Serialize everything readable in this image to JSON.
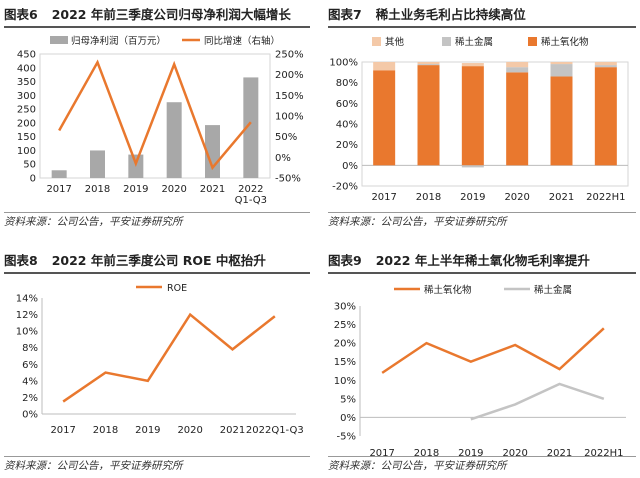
{
  "colors": {
    "orange": "#E9782E",
    "gray": "#A8A8A8",
    "peach": "#F4C9A8",
    "lightgray": "#C4C4C4"
  },
  "panels": [
    {
      "fig": "图表6",
      "title": "2022 年前三季度公司归母净利润大幅增长",
      "source": "资料来源：公司公告，平安证券研究所"
    },
    {
      "fig": "图表7",
      "title": "稀土业务毛利占比持续高位",
      "source": "资料来源：公司公告，平安证券研究所"
    },
    {
      "fig": "图表8",
      "title": "2022 年前三季度公司 ROE 中枢抬升",
      "source": "资料来源：公司公告，平安证券研究所"
    },
    {
      "fig": "图表9",
      "title": "2022 年上半年稀土氧化物毛利率提升",
      "source": "资料来源：公司公告，平安证券研究所"
    }
  ],
  "chart_data": [
    {
      "type": "bar",
      "title": "2022 年前三季度公司归母净利润大幅增长",
      "categories": [
        "2017",
        "2018",
        "2019",
        "2020",
        "2021",
        "2022\nQ1-Q3"
      ],
      "series": [
        {
          "name": "归母净利润（百万元）",
          "kind": "bar",
          "axis": "left",
          "values": [
            28,
            100,
            85,
            275,
            192,
            365
          ]
        },
        {
          "name": "同比增速（右轴）",
          "kind": "line",
          "axis": "right",
          "values": [
            65,
            230,
            -15,
            225,
            -25,
            85
          ]
        }
      ],
      "ylim_left": [
        0,
        450
      ],
      "yticks_left": [
        "0",
        "50",
        "100",
        "150",
        "200",
        "250",
        "300",
        "350",
        "400",
        "450"
      ],
      "ylim_right": [
        -50,
        250
      ],
      "yticks_right": [
        "-50%",
        "0%",
        "50%",
        "100%",
        "150%",
        "200%",
        "250%"
      ],
      "legend_position": "top"
    },
    {
      "type": "bar",
      "stacked": true,
      "title": "稀土业务毛利占比持续高位",
      "categories": [
        "2017",
        "2018",
        "2019",
        "2020",
        "2021",
        "2022H1"
      ],
      "series": [
        {
          "name": "其他",
          "values": [
            8,
            2,
            3,
            5,
            2,
            3
          ]
        },
        {
          "name": "稀土金属",
          "values": [
            0,
            1,
            -2,
            5,
            12,
            2
          ]
        },
        {
          "name": "稀土氧化物",
          "values": [
            92,
            97,
            96,
            90,
            86,
            95
          ]
        }
      ],
      "ylim": [
        -20,
        100
      ],
      "yticks": [
        "-20%",
        "0%",
        "20%",
        "40%",
        "60%",
        "80%",
        "100%"
      ],
      "legend_position": "top"
    },
    {
      "type": "line",
      "title": "2022 年前三季度公司 ROE 中枢抬升",
      "categories": [
        "2017",
        "2018",
        "2019",
        "2020",
        "2021",
        "2022Q1-Q3"
      ],
      "series": [
        {
          "name": "ROE",
          "values": [
            1.5,
            5.0,
            4.0,
            12.0,
            7.8,
            11.8
          ]
        }
      ],
      "ylim": [
        0,
        14
      ],
      "yticks": [
        "0%",
        "2%",
        "4%",
        "6%",
        "8%",
        "10%",
        "12%",
        "14%"
      ],
      "legend_position": "top"
    },
    {
      "type": "line",
      "title": "2022 年上半年稀土氧化物毛利率提升",
      "categories": [
        "2017",
        "2018",
        "2019",
        "2020",
        "2021",
        "2022H1"
      ],
      "series": [
        {
          "name": "稀土氧化物",
          "values": [
            12,
            20,
            15,
            19.5,
            13,
            24
          ]
        },
        {
          "name": "稀土金属",
          "values": [
            null,
            null,
            -0.5,
            3.5,
            9,
            5
          ]
        }
      ],
      "ylim": [
        -5,
        30
      ],
      "yticks": [
        "-5%",
        "0%",
        "5%",
        "10%",
        "15%",
        "20%",
        "25%",
        "30%"
      ],
      "legend_position": "top"
    }
  ]
}
